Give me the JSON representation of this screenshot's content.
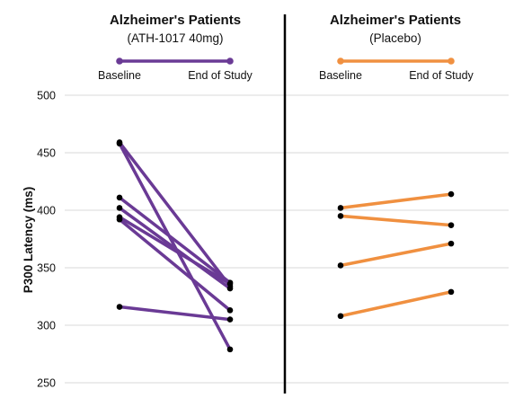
{
  "chart_data": {
    "type": "line",
    "ylabel": "P300 Latency (ms)",
    "ylim": [
      250,
      500
    ],
    "yticks": [
      250,
      300,
      350,
      400,
      450,
      500
    ],
    "grid": true,
    "panels": [
      {
        "title": "Alzheimer's Patients",
        "subtitle": "(ATH-1017 40mg)",
        "color": "#6a3a95",
        "x": [
          "Baseline",
          "End of Study"
        ],
        "series": [
          {
            "values": [
              459,
              334
            ]
          },
          {
            "values": [
              458,
              279
            ]
          },
          {
            "values": [
              411,
              337
            ]
          },
          {
            "values": [
              402,
              332
            ]
          },
          {
            "values": [
              394,
              336
            ]
          },
          {
            "values": [
              392,
              313
            ]
          },
          {
            "values": [
              316,
              305
            ]
          }
        ]
      },
      {
        "title": "Alzheimer's Patients",
        "subtitle": "(Placebo)",
        "color": "#f09040",
        "x": [
          "Baseline",
          "End of Study"
        ],
        "series": [
          {
            "values": [
              402,
              414
            ]
          },
          {
            "values": [
              395,
              387
            ]
          },
          {
            "values": [
              352,
              371
            ]
          },
          {
            "values": [
              308,
              329
            ]
          }
        ]
      }
    ]
  }
}
